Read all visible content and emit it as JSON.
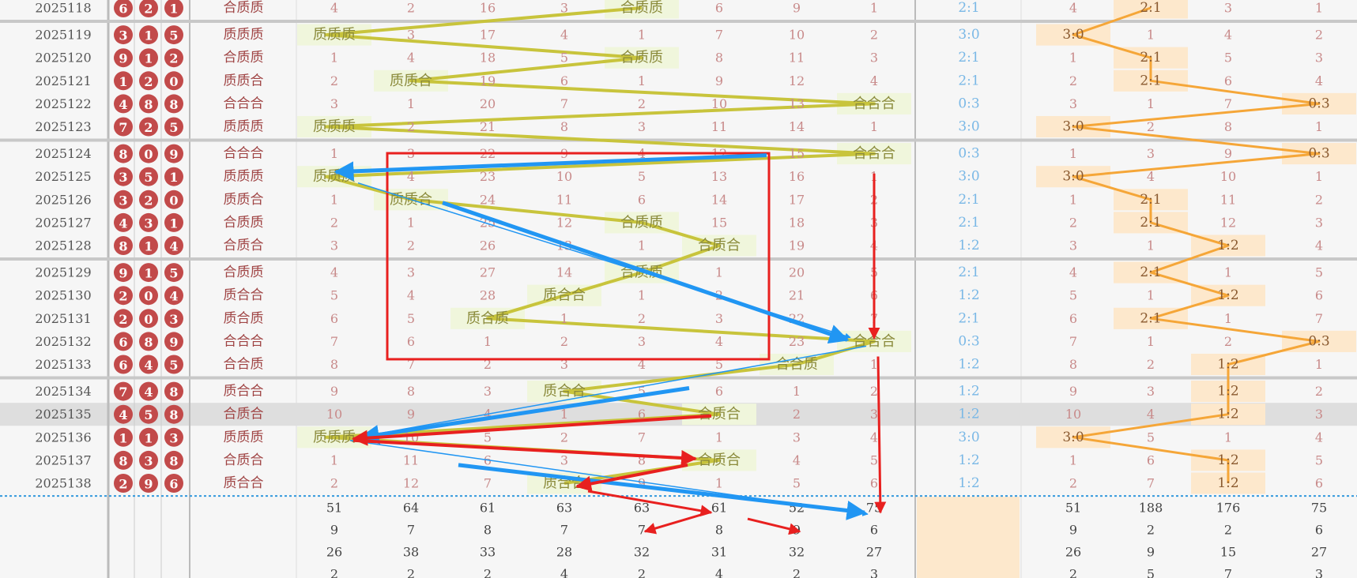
{
  "chart_data": {
    "type": "table",
    "title": "",
    "rows": [
      {
        "period": "2025118",
        "balls": [
          "6",
          "2",
          "1"
        ],
        "pattern": "合质质",
        "cells": [
          "4",
          "2",
          "16",
          "3",
          "合质质",
          "6",
          "9",
          "1"
        ],
        "ratio_a": "2:1",
        "cells_b": [
          "4",
          "2:1",
          "3",
          "1"
        ]
      },
      {
        "period": "2025119",
        "balls": [
          "3",
          "1",
          "5"
        ],
        "pattern": "质质质",
        "cells": [
          "质质质",
          "3",
          "17",
          "4",
          "1",
          "7",
          "10",
          "2"
        ],
        "ratio_a": "3:0",
        "cells_b": [
          "3:0",
          "1",
          "4",
          "2"
        ]
      },
      {
        "period": "2025120",
        "balls": [
          "9",
          "1",
          "2"
        ],
        "pattern": "合质质",
        "cells": [
          "1",
          "4",
          "18",
          "5",
          "合质质",
          "8",
          "11",
          "3"
        ],
        "ratio_a": "2:1",
        "cells_b": [
          "1",
          "2:1",
          "5",
          "3"
        ]
      },
      {
        "period": "2025121",
        "balls": [
          "1",
          "2",
          "0"
        ],
        "pattern": "质质合",
        "cells": [
          "2",
          "质质合",
          "19",
          "6",
          "1",
          "9",
          "12",
          "4"
        ],
        "ratio_a": "2:1",
        "cells_b": [
          "2",
          "2:1",
          "6",
          "4"
        ]
      },
      {
        "period": "2025122",
        "balls": [
          "4",
          "8",
          "8"
        ],
        "pattern": "合合合",
        "cells": [
          "3",
          "1",
          "20",
          "7",
          "2",
          "10",
          "13",
          "合合合"
        ],
        "ratio_a": "0:3",
        "cells_b": [
          "3",
          "1",
          "7",
          "0:3"
        ]
      },
      {
        "period": "2025123",
        "balls": [
          "7",
          "2",
          "5"
        ],
        "pattern": "质质质",
        "cells": [
          "质质质",
          "2",
          "21",
          "8",
          "3",
          "11",
          "14",
          "1"
        ],
        "ratio_a": "3:0",
        "cells_b": [
          "3:0",
          "2",
          "8",
          "1"
        ]
      },
      {
        "period": "2025124",
        "balls": [
          "8",
          "0",
          "9"
        ],
        "pattern": "合合合",
        "cells": [
          "1",
          "3",
          "22",
          "9",
          "4",
          "12",
          "15",
          "合合合"
        ],
        "ratio_a": "0:3",
        "cells_b": [
          "1",
          "3",
          "9",
          "0:3"
        ]
      },
      {
        "period": "2025125",
        "balls": [
          "3",
          "5",
          "1"
        ],
        "pattern": "质质质",
        "cells": [
          "质质质",
          "4",
          "23",
          "10",
          "5",
          "13",
          "16",
          "1"
        ],
        "ratio_a": "3:0",
        "cells_b": [
          "3:0",
          "4",
          "10",
          "1"
        ]
      },
      {
        "period": "2025126",
        "balls": [
          "3",
          "2",
          "0"
        ],
        "pattern": "质质合",
        "cells": [
          "1",
          "质质合",
          "24",
          "11",
          "6",
          "14",
          "17",
          "2"
        ],
        "ratio_a": "2:1",
        "cells_b": [
          "1",
          "2:1",
          "11",
          "2"
        ]
      },
      {
        "period": "2025127",
        "balls": [
          "4",
          "3",
          "1"
        ],
        "pattern": "合质质",
        "cells": [
          "2",
          "1",
          "25",
          "12",
          "合质质",
          "15",
          "18",
          "3"
        ],
        "ratio_a": "2:1",
        "cells_b": [
          "2",
          "2:1",
          "12",
          "3"
        ]
      },
      {
        "period": "2025128",
        "balls": [
          "8",
          "1",
          "4"
        ],
        "pattern": "合质合",
        "cells": [
          "3",
          "2",
          "26",
          "13",
          "1",
          "合质合",
          "19",
          "4"
        ],
        "ratio_a": "1:2",
        "cells_b": [
          "3",
          "1",
          "1:2",
          "4"
        ]
      },
      {
        "period": "2025129",
        "balls": [
          "9",
          "1",
          "5"
        ],
        "pattern": "合质质",
        "cells": [
          "4",
          "3",
          "27",
          "14",
          "合质质",
          "1",
          "20",
          "5"
        ],
        "ratio_a": "2:1",
        "cells_b": [
          "4",
          "2:1",
          "1",
          "5"
        ]
      },
      {
        "period": "2025130",
        "balls": [
          "2",
          "0",
          "4"
        ],
        "pattern": "质合合",
        "cells": [
          "5",
          "4",
          "28",
          "质合合",
          "1",
          "2",
          "21",
          "6"
        ],
        "ratio_a": "1:2",
        "cells_b": [
          "5",
          "1",
          "1:2",
          "6"
        ]
      },
      {
        "period": "2025131",
        "balls": [
          "2",
          "0",
          "3"
        ],
        "pattern": "质合质",
        "cells": [
          "6",
          "5",
          "质合质",
          "1",
          "2",
          "3",
          "22",
          "7"
        ],
        "ratio_a": "2:1",
        "cells_b": [
          "6",
          "2:1",
          "1",
          "7"
        ]
      },
      {
        "period": "2025132",
        "balls": [
          "6",
          "8",
          "9"
        ],
        "pattern": "合合合",
        "cells": [
          "7",
          "6",
          "1",
          "2",
          "3",
          "4",
          "23",
          "合合合"
        ],
        "ratio_a": "0:3",
        "cells_b": [
          "7",
          "1",
          "2",
          "0:3"
        ]
      },
      {
        "period": "2025133",
        "balls": [
          "6",
          "4",
          "5"
        ],
        "pattern": "合合质",
        "cells": [
          "8",
          "7",
          "2",
          "3",
          "4",
          "5",
          "合合质",
          "1"
        ],
        "ratio_a": "1:2",
        "cells_b": [
          "8",
          "2",
          "1:2",
          "1"
        ]
      },
      {
        "period": "2025134",
        "balls": [
          "7",
          "4",
          "8"
        ],
        "pattern": "质合合",
        "cells": [
          "9",
          "8",
          "3",
          "质合合",
          "5",
          "6",
          "1",
          "2"
        ],
        "ratio_a": "1:2",
        "cells_b": [
          "9",
          "3",
          "1:2",
          "2"
        ]
      },
      {
        "period": "2025135",
        "balls": [
          "4",
          "5",
          "8"
        ],
        "pattern": "合质合",
        "cells": [
          "10",
          "9",
          "4",
          "1",
          "6",
          "合质合",
          "2",
          "3"
        ],
        "ratio_a": "1:2",
        "cells_b": [
          "10",
          "4",
          "1:2",
          "3"
        ]
      },
      {
        "period": "2025136",
        "balls": [
          "1",
          "1",
          "3"
        ],
        "pattern": "质质质",
        "cells": [
          "质质质",
          "10",
          "5",
          "2",
          "7",
          "1",
          "3",
          "4"
        ],
        "ratio_a": "3:0",
        "cells_b": [
          "3:0",
          "5",
          "1",
          "4"
        ]
      },
      {
        "period": "2025137",
        "balls": [
          "8",
          "3",
          "8"
        ],
        "pattern": "合质合",
        "cells": [
          "1",
          "11",
          "6",
          "3",
          "8",
          "合质合",
          "4",
          "5"
        ],
        "ratio_a": "1:2",
        "cells_b": [
          "1",
          "6",
          "1:2",
          "5"
        ]
      },
      {
        "period": "2025138",
        "balls": [
          "2",
          "9",
          "6"
        ],
        "pattern": "质合合",
        "cells": [
          "2",
          "12",
          "7",
          "质合合",
          "9",
          "1",
          "5",
          "6"
        ],
        "ratio_a": "1:2",
        "cells_b": [
          "2",
          "7",
          "1:2",
          "6"
        ]
      }
    ],
    "stats": [
      {
        "cells": [
          "51",
          "64",
          "61",
          "63",
          "63",
          "61",
          "52",
          "75"
        ],
        "cells_b": [
          "51",
          "188",
          "176",
          "75"
        ]
      },
      {
        "cells": [
          "9",
          "7",
          "8",
          "7",
          "7",
          "8",
          "9",
          "6"
        ],
        "cells_b": [
          "9",
          "2",
          "2",
          "6"
        ]
      },
      {
        "cells": [
          "26",
          "38",
          "33",
          "28",
          "32",
          "31",
          "32",
          "27"
        ],
        "cells_b": [
          "26",
          "9",
          "15",
          "27"
        ]
      },
      {
        "cells": [
          "2",
          "2",
          "2",
          "4",
          "2",
          "4",
          "2",
          "3"
        ],
        "cells_b": [
          "2",
          "5",
          "7",
          "3"
        ]
      }
    ],
    "highlighted_row": "2025135",
    "colors": {
      "ball": "#c24a4a",
      "pattern_text": "#a04545",
      "number_text": "#c88a8a",
      "hit_bg": "#f0f6dc",
      "hit_text": "#8a8a3a",
      "zigzag": "#c8c43c",
      "ratio_text": "#7ab8e6",
      "hit_b_bg": "#fde8cc",
      "zigzag_b": "#f5a638",
      "annot_blue": "#2196f3",
      "annot_red": "#e8201f"
    }
  }
}
